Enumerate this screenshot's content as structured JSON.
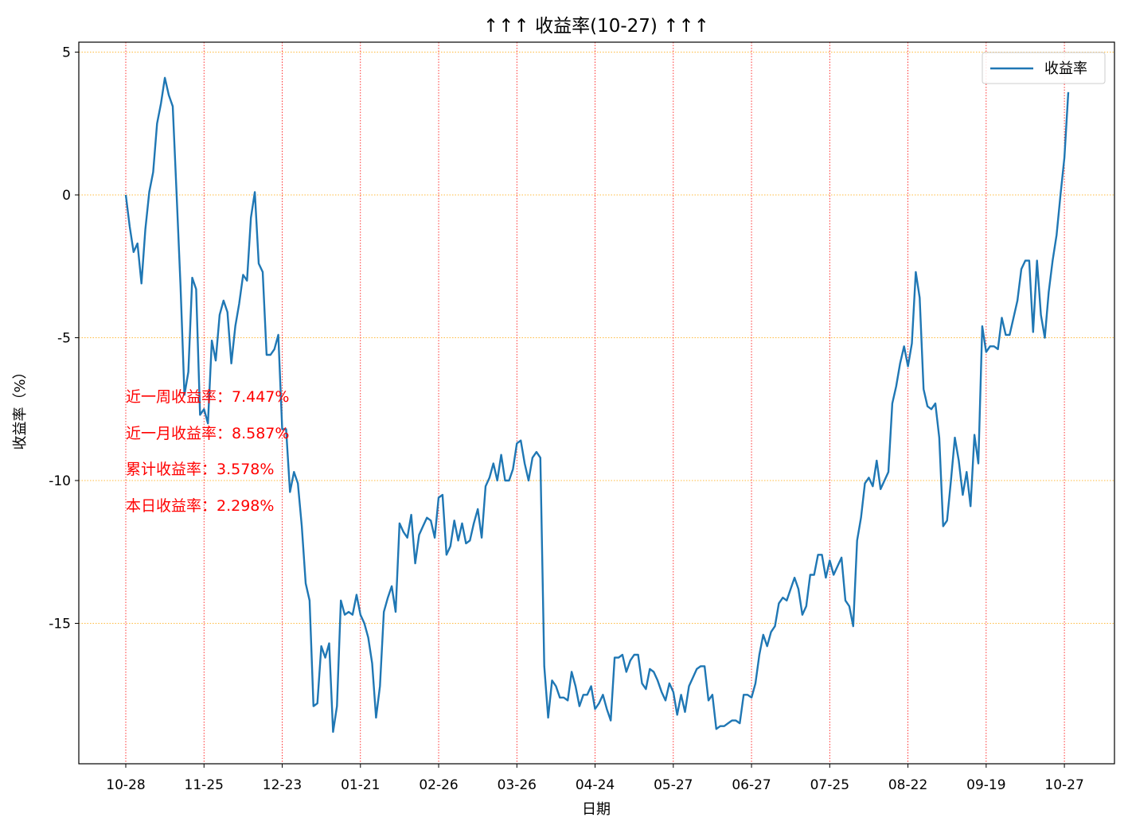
{
  "chart_data": {
    "type": "line",
    "title": "↑↑↑ 收益率(10-27) ↑↑↑",
    "xlabel": "日期",
    "ylabel": "收益率（%）",
    "ylim": [
      -20,
      5.3
    ],
    "yticks": [
      5,
      0,
      -5,
      -10,
      -15
    ],
    "ytick_labels": [
      "5",
      "0",
      "-5",
      "-10",
      "-15"
    ],
    "xtick_labels": [
      "10-28",
      "11-25",
      "12-23",
      "01-21",
      "02-26",
      "03-26",
      "04-24",
      "05-27",
      "06-27",
      "07-25",
      "08-22",
      "09-19",
      "10-27"
    ],
    "grid": true,
    "legend_position": "top-right",
    "series": [
      {
        "name": "收益率",
        "color": "#1f77b4",
        "values": [
          0.0,
          -1.1,
          -2.0,
          -1.7,
          -3.1,
          -1.2,
          0.1,
          0.8,
          2.5,
          3.2,
          4.1,
          3.5,
          3.1,
          0.0,
          -3.2,
          -7.0,
          -6.2,
          -2.9,
          -3.3,
          -7.7,
          -7.5,
          -8.0,
          -5.1,
          -5.8,
          -4.2,
          -3.7,
          -4.1,
          -5.9,
          -4.6,
          -3.8,
          -2.8,
          -3.0,
          -0.8,
          0.1,
          -2.4,
          -2.7,
          -5.6,
          -5.6,
          -5.4,
          -4.9,
          -8.2,
          -8.2,
          -10.4,
          -9.7,
          -10.1,
          -11.6,
          -13.6,
          -14.2,
          -17.9,
          -17.8,
          -15.8,
          -16.2,
          -15.7,
          -18.8,
          -17.9,
          -14.2,
          -14.7,
          -14.6,
          -14.7,
          -14.0,
          -14.7,
          -15.0,
          -15.5,
          -16.4,
          -18.3,
          -17.2,
          -14.6,
          -14.1,
          -13.7,
          -14.6,
          -11.5,
          -11.8,
          -12.0,
          -11.2,
          -12.9,
          -11.9,
          -11.6,
          -11.3,
          -11.4,
          -12.0,
          -10.6,
          -10.5,
          -12.6,
          -12.3,
          -11.4,
          -12.1,
          -11.5,
          -12.2,
          -12.1,
          -11.5,
          -11.0,
          -12.0,
          -10.2,
          -9.9,
          -9.4,
          -10.0,
          -9.1,
          -10.0,
          -10.0,
          -9.6,
          -8.7,
          -8.6,
          -9.4,
          -10.0,
          -9.2,
          -9.0,
          -9.2,
          -16.5,
          -18.3,
          -17.0,
          -17.2,
          -17.6,
          -17.6,
          -17.7,
          -16.7,
          -17.2,
          -17.9,
          -17.5,
          -17.5,
          -17.2,
          -18.0,
          -17.8,
          -17.5,
          -18.0,
          -18.4,
          -16.2,
          -16.2,
          -16.1,
          -16.7,
          -16.3,
          -16.1,
          -16.1,
          -17.1,
          -17.3,
          -16.6,
          -16.7,
          -17.0,
          -17.4,
          -17.7,
          -17.1,
          -17.4,
          -18.2,
          -17.5,
          -18.1,
          -17.2,
          -16.9,
          -16.6,
          -16.5,
          -16.5,
          -17.7,
          -17.5,
          -18.7,
          -18.6,
          -18.6,
          -18.5,
          -18.4,
          -18.4,
          -18.5,
          -17.5,
          -17.5,
          -17.6,
          -17.1,
          -16.1,
          -15.4,
          -15.8,
          -15.3,
          -15.1,
          -14.3,
          -14.1,
          -14.2,
          -13.8,
          -13.4,
          -13.8,
          -14.7,
          -14.4,
          -13.3,
          -13.3,
          -12.6,
          -12.6,
          -13.4,
          -12.8,
          -13.3,
          -13.0,
          -12.7,
          -14.2,
          -14.4,
          -15.1,
          -12.1,
          -11.3,
          -10.1,
          -9.9,
          -10.2,
          -9.3,
          -10.3,
          -10.0,
          -9.7,
          -7.3,
          -6.7,
          -5.9,
          -5.3,
          -6.0,
          -5.2,
          -2.7,
          -3.6,
          -6.8,
          -7.4,
          -7.5,
          -7.3,
          -8.5,
          -11.6,
          -11.4,
          -10.0,
          -8.5,
          -9.3,
          -10.5,
          -9.7,
          -10.9,
          -8.4,
          -9.4,
          -4.6,
          -5.5,
          -5.3,
          -5.3,
          -5.4,
          -4.3,
          -4.9,
          -4.9,
          -4.3,
          -3.7,
          -2.6,
          -2.3,
          -2.3,
          -4.8,
          -2.3,
          -4.2,
          -5.0,
          -3.4,
          -2.3,
          -1.4,
          0.0,
          1.3,
          3.6
        ]
      }
    ],
    "annotations": [
      "近一周收益率：7.447%",
      "近一月收益率：8.587%",
      "累计收益率：3.578%",
      "本日收益率：2.298%"
    ]
  }
}
